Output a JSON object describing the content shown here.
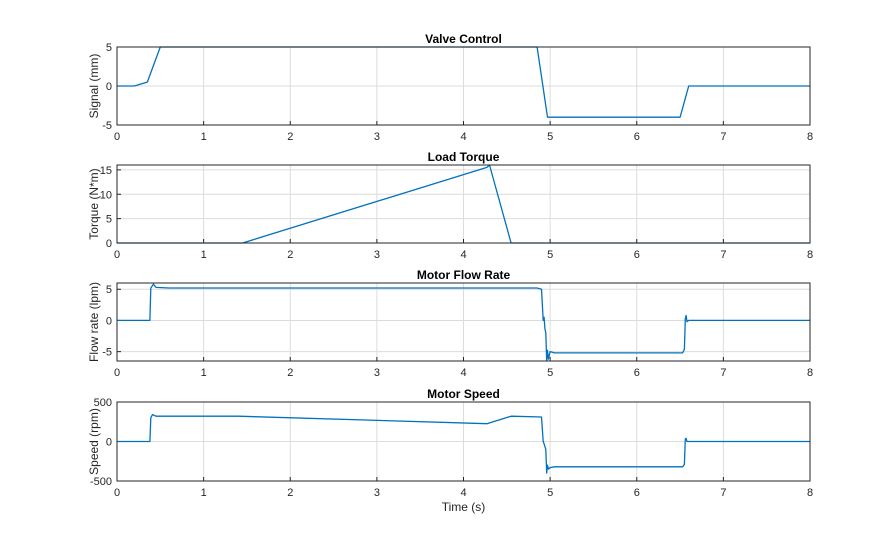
{
  "chart_data": [
    {
      "type": "line",
      "title": "Valve Control",
      "ylabel": "Signal (mm)",
      "xlabel": "",
      "xlim": [
        0,
        8
      ],
      "ylim": [
        -5,
        5
      ],
      "xticks": [
        "0",
        "1",
        "2",
        "3",
        "4",
        "5",
        "6",
        "7",
        "8"
      ],
      "yticks": [
        "-5",
        "0",
        "5"
      ],
      "grid": true,
      "line_color": "#0072BD",
      "series": [
        {
          "x": [
            0,
            0.2,
            0.35,
            0.5,
            4.85,
            4.97,
            6.5,
            6.6,
            8
          ],
          "y": [
            0,
            0,
            0.5,
            5,
            5,
            -4,
            -4,
            0,
            0
          ]
        }
      ]
    },
    {
      "type": "line",
      "title": "Load Torque",
      "ylabel": "Torque (N*m)",
      "xlabel": "",
      "xlim": [
        0,
        8
      ],
      "ylim": [
        0,
        16
      ],
      "xticks": [
        "0",
        "1",
        "2",
        "3",
        "4",
        "5",
        "6",
        "7",
        "8"
      ],
      "yticks": [
        "0",
        "5",
        "10",
        "15"
      ],
      "grid": true,
      "line_color": "#0072BD",
      "series": [
        {
          "x": [
            0,
            1.45,
            4.27,
            4.3,
            4.55,
            8
          ],
          "y": [
            0,
            0,
            15.5,
            16,
            0,
            0
          ]
        }
      ]
    },
    {
      "type": "line",
      "title": "Motor Flow Rate",
      "ylabel": "Flow rate (lpm)",
      "xlabel": "",
      "xlim": [
        0,
        8
      ],
      "ylim": [
        -6.5,
        6
      ],
      "xticks": [
        "0",
        "1",
        "2",
        "3",
        "4",
        "5",
        "6",
        "7",
        "8"
      ],
      "yticks": [
        "-5",
        "0",
        "5"
      ],
      "grid": true,
      "line_color": "#0072BD",
      "series": [
        {
          "x": [
            0,
            0.38,
            0.39,
            0.42,
            0.45,
            0.6,
            4.85,
            4.9,
            4.92,
            4.93,
            4.94,
            4.95,
            4.96,
            4.97,
            4.98,
            5.0,
            5.05,
            6.53,
            6.55,
            6.56,
            6.57,
            6.58,
            6.6,
            8
          ],
          "y": [
            0,
            0,
            5.2,
            5.8,
            5.3,
            5.2,
            5.2,
            5.0,
            0,
            0.5,
            -1.3,
            -2.0,
            -6.5,
            -4.8,
            -6.2,
            -5.0,
            -5.2,
            -5.2,
            -4.6,
            0.3,
            0.8,
            -0.2,
            0,
            0
          ]
        }
      ]
    },
    {
      "type": "line",
      "title": "Motor Speed",
      "ylabel": "Speed (rpm)",
      "xlabel": "Time (s)",
      "xlim": [
        0,
        8
      ],
      "ylim": [
        -500,
        500
      ],
      "xticks": [
        "0",
        "1",
        "2",
        "3",
        "4",
        "5",
        "6",
        "7",
        "8"
      ],
      "yticks": [
        "-500",
        "0",
        "500"
      ],
      "grid": true,
      "line_color": "#0072BD",
      "series": [
        {
          "x": [
            0,
            0.38,
            0.39,
            0.41,
            0.45,
            1.4,
            4.27,
            4.55,
            4.9,
            4.92,
            4.93,
            4.95,
            4.96,
            4.97,
            4.98,
            5.0,
            5.05,
            6.53,
            6.55,
            6.56,
            6.57,
            6.58,
            6.6,
            8
          ],
          "y": [
            0,
            0,
            300,
            340,
            320,
            320,
            225,
            320,
            310,
            0,
            -30,
            -100,
            -400,
            -300,
            -350,
            -330,
            -320,
            -320,
            -290,
            30,
            40,
            0,
            0,
            0
          ]
        }
      ]
    }
  ]
}
